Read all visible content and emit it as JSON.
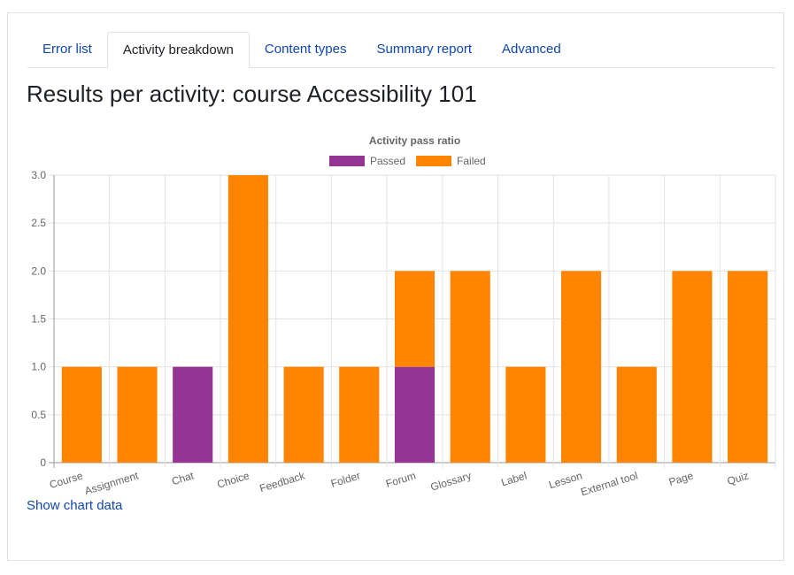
{
  "tabs": [
    {
      "label": "Error list",
      "active": false
    },
    {
      "label": "Activity breakdown",
      "active": true
    },
    {
      "label": "Content types",
      "active": false
    },
    {
      "label": "Summary report",
      "active": false
    },
    {
      "label": "Advanced",
      "active": false
    }
  ],
  "page_title": "Results per activity: course Accessibility 101",
  "show_chart_data_link": "Show chart data",
  "chart_data": {
    "type": "bar",
    "stacked": true,
    "title": "Activity pass ratio",
    "legend_position": "top",
    "categories": [
      "Course",
      "Assignment",
      "Chat",
      "Choice",
      "Feedback",
      "Folder",
      "Forum",
      "Glossary",
      "Label",
      "Lesson",
      "External tool",
      "Page",
      "Quiz"
    ],
    "series": [
      {
        "name": "Passed",
        "color": "#953493",
        "values": [
          0,
          0,
          1,
          0,
          0,
          0,
          1,
          0,
          0,
          0,
          0,
          0,
          0
        ]
      },
      {
        "name": "Failed",
        "color": "#ff8400",
        "values": [
          1,
          1,
          0,
          3,
          1,
          1,
          1,
          2,
          1,
          2,
          1,
          2,
          2
        ]
      }
    ],
    "ylim": [
      0,
      3
    ],
    "yticks": [
      "0",
      "0.5",
      "1.0",
      "1.5",
      "2.0",
      "2.5",
      "3.0"
    ],
    "grid": true
  }
}
